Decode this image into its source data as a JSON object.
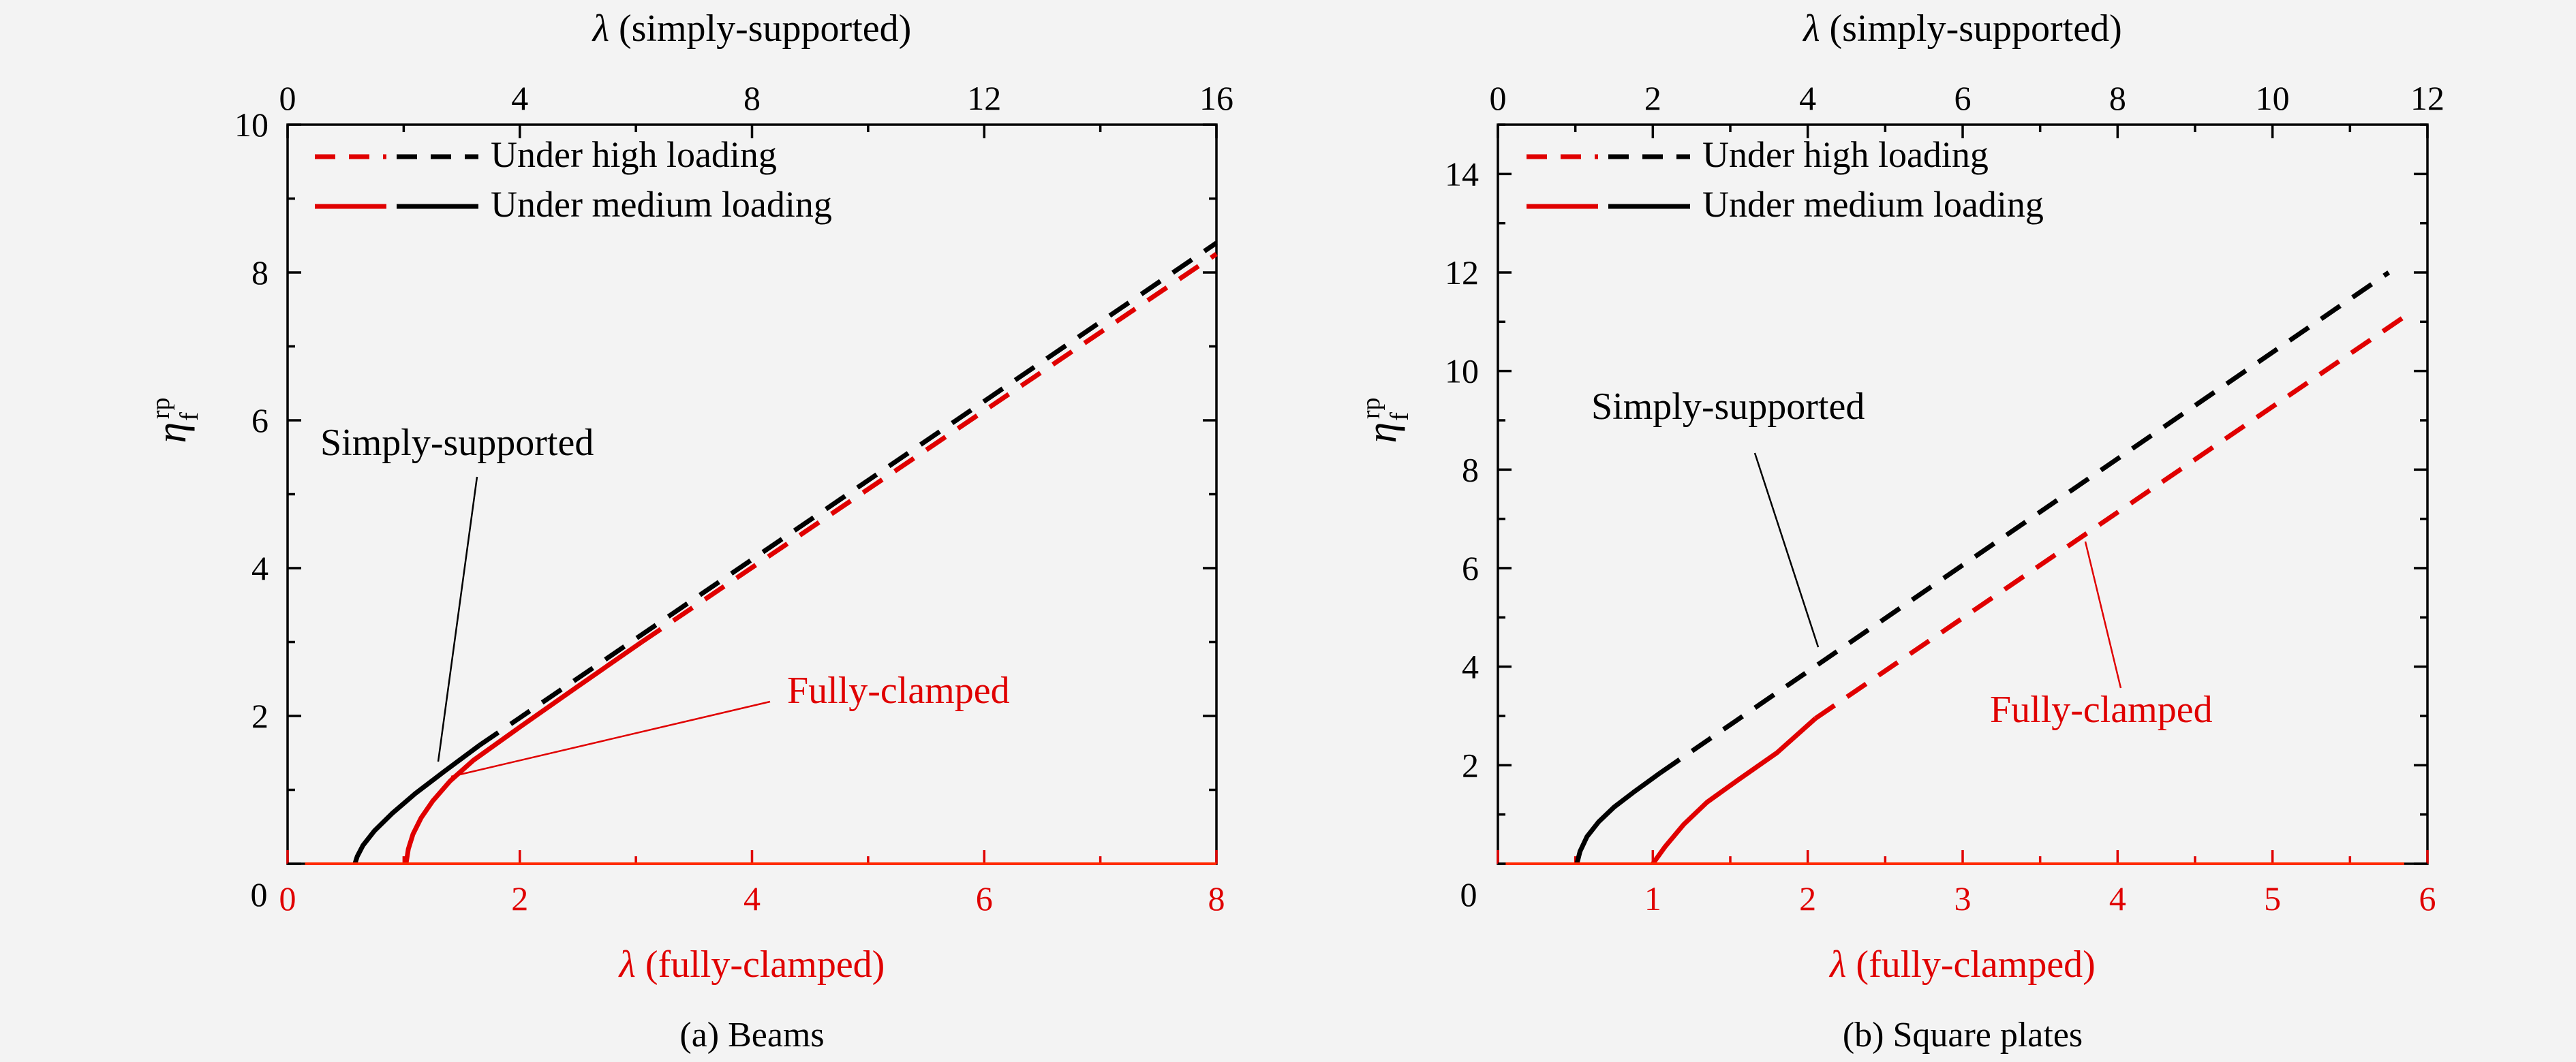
{
  "colors": {
    "black": "#000000",
    "red": "#e00000",
    "axis_red": "#ff2a00",
    "background": "#f3f3f3"
  },
  "chart_data": [
    {
      "type": "line",
      "caption": "(a) Beams",
      "x_bottom": {
        "label_symbol": "λ",
        "label_text": " (fully-clamped)",
        "range": [
          0,
          8
        ],
        "ticks": [
          "0",
          "2",
          "4",
          "6",
          "8"
        ]
      },
      "x_top": {
        "label_symbol": "λ",
        "label_text": " (simply-supported)",
        "range": [
          0,
          16
        ],
        "ticks": [
          "0",
          "4",
          "8",
          "12",
          "16"
        ]
      },
      "y": {
        "label": "η_f^rp",
        "range": [
          0,
          10
        ],
        "ticks": [
          "2",
          "4",
          "6",
          "8",
          "10"
        ]
      },
      "legend": {
        "position": "top-left",
        "entries": [
          {
            "label": "Under high loading",
            "style": "dashed"
          },
          {
            "label": "Under medium loading",
            "style": "solid"
          }
        ]
      },
      "annotations": [
        {
          "text": "Simply-supported",
          "color": "black"
        },
        {
          "text": "Fully-clamped",
          "color": "red"
        }
      ],
      "series": [
        {
          "color": "black",
          "style": "solid",
          "axis": "top",
          "x": [
            1.16,
            1.2,
            1.3,
            1.5,
            1.8,
            2.2,
            2.7,
            3.3
          ],
          "y": [
            0,
            0.1,
            0.25,
            0.45,
            0.68,
            0.95,
            1.25,
            1.6
          ]
        },
        {
          "color": "black",
          "style": "dashed",
          "axis": "top",
          "x": [
            3.3,
            16
          ],
          "y": [
            1.6,
            8.4
          ]
        },
        {
          "color": "red",
          "style": "solid",
          "axis": "bottom",
          "x": [
            1.02,
            1.04,
            1.08,
            1.15,
            1.25,
            1.4,
            1.6,
            2.0,
            2.5,
            3.05
          ],
          "y": [
            0,
            0.2,
            0.4,
            0.62,
            0.85,
            1.12,
            1.4,
            1.85,
            2.4,
            3.0
          ]
        },
        {
          "color": "red",
          "style": "dashed",
          "axis": "bottom",
          "x": [
            3.05,
            8
          ],
          "y": [
            3.0,
            8.25
          ]
        },
        {
          "color": "red",
          "style": "solid",
          "axis": "bottom",
          "x": [
            0.15,
            8
          ],
          "y": [
            0,
            0
          ]
        }
      ]
    },
    {
      "type": "line",
      "caption": "(b) Square plates",
      "x_bottom": {
        "label_symbol": "λ",
        "label_text": " (fully-clamped)",
        "range": [
          0,
          6
        ],
        "ticks": [
          "1",
          "2",
          "3",
          "4",
          "5",
          "6"
        ]
      },
      "x_top": {
        "label_symbol": "λ",
        "label_text": " (simply-supported)",
        "range": [
          0,
          12
        ],
        "ticks": [
          "0",
          "2",
          "4",
          "6",
          "8",
          "10",
          "12"
        ]
      },
      "y": {
        "label": "η_f^rp",
        "range": [
          0,
          15
        ],
        "ticks": [
          "2",
          "4",
          "6",
          "8",
          "10",
          "12",
          "14"
        ]
      },
      "origin_label": "0",
      "legend": {
        "position": "top-left",
        "entries": [
          {
            "label": "Under high loading",
            "style": "dashed"
          },
          {
            "label": "Under medium loading",
            "style": "solid"
          }
        ]
      },
      "annotations": [
        {
          "text": "Simply-supported",
          "color": "black"
        },
        {
          "text": "Fully-clamped",
          "color": "red"
        }
      ],
      "series": [
        {
          "color": "black",
          "style": "solid",
          "axis": "top",
          "x": [
            1.02,
            1.06,
            1.15,
            1.3,
            1.5,
            1.75,
            2.1
          ],
          "y": [
            0,
            0.25,
            0.55,
            0.85,
            1.15,
            1.45,
            1.85
          ]
        },
        {
          "color": "black",
          "style": "dashed",
          "axis": "top",
          "x": [
            2.1,
            11.5
          ],
          "y": [
            1.85,
            12.0
          ]
        },
        {
          "color": "red",
          "style": "solid",
          "axis": "bottom",
          "x": [
            1.0,
            1.08,
            1.2,
            1.35,
            1.55,
            1.8,
            2.05
          ],
          "y": [
            0,
            0.35,
            0.8,
            1.25,
            1.7,
            2.25,
            2.95
          ]
        },
        {
          "color": "red",
          "style": "dashed",
          "axis": "bottom",
          "x": [
            2.05,
            5.85
          ],
          "y": [
            2.95,
            11.1
          ]
        },
        {
          "color": "red",
          "style": "solid",
          "axis": "bottom",
          "x": [
            0.05,
            5.85
          ],
          "y": [
            0,
            0
          ]
        }
      ]
    }
  ]
}
